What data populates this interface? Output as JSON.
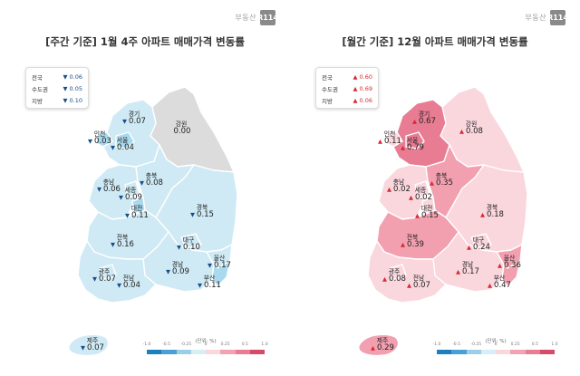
{
  "brand": {
    "text": "부동산",
    "logo": "R114"
  },
  "colors": {
    "down": "#1a4e8a",
    "up": "#d42a32",
    "weekly_fill": "#cfeaf4",
    "weekly_dark": "#a9d9ee",
    "weekly_gray": "#dcdcdc",
    "monthly_light": "#fad6dd",
    "monthly_mid": "#f2a0b0",
    "monthly_dark": "#e87c93",
    "region_border": "#ffffff"
  },
  "scale": {
    "unit": "(단위: %)",
    "ticks": [
      "-1.0",
      "-0.5",
      "-0.25",
      "0",
      "0.25",
      "0.5",
      "1.0"
    ],
    "colors": [
      "#1d7fbf",
      "#4aa0d2",
      "#9ccfe7",
      "#d6eef6",
      "#fad6dd",
      "#f2a3b3",
      "#e87c93",
      "#d44c6a"
    ]
  },
  "weekly": {
    "title": "[주간 기준] 1월 4주 아파트 매매가격 변동률",
    "legend": [
      {
        "label": "전국",
        "arrow": "▼",
        "value": "0.06"
      },
      {
        "label": "수도권",
        "arrow": "▼",
        "value": "0.05"
      },
      {
        "label": "지방",
        "arrow": "▼",
        "value": "0.10"
      }
    ],
    "regions": [
      {
        "name": "경기",
        "arrow": "▼",
        "value": "0.07"
      },
      {
        "name": "강원",
        "arrow": "",
        "value": "0.00"
      },
      {
        "name": "인천",
        "arrow": "▼",
        "value": "0.03"
      },
      {
        "name": "서울",
        "arrow": "▼",
        "value": "0.04"
      },
      {
        "name": "충북",
        "arrow": "▼",
        "value": "0.08"
      },
      {
        "name": "충남",
        "arrow": "▼",
        "value": "0.06"
      },
      {
        "name": "세종",
        "arrow": "▼",
        "value": "0.09"
      },
      {
        "name": "대전",
        "arrow": "▼",
        "value": "0.11"
      },
      {
        "name": "경북",
        "arrow": "▼",
        "value": "0.15"
      },
      {
        "name": "전북",
        "arrow": "▼",
        "value": "0.16"
      },
      {
        "name": "대구",
        "arrow": "▼",
        "value": "0.10"
      },
      {
        "name": "울산",
        "arrow": "▼",
        "value": "0.17"
      },
      {
        "name": "광주",
        "arrow": "▼",
        "value": "0.07"
      },
      {
        "name": "전남",
        "arrow": "▼",
        "value": "0.04"
      },
      {
        "name": "경남",
        "arrow": "▼",
        "value": "0.09"
      },
      {
        "name": "부산",
        "arrow": "▼",
        "value": "0.11"
      },
      {
        "name": "제주",
        "arrow": "▼",
        "value": "0.07"
      }
    ]
  },
  "monthly": {
    "title": "[월간 기준] 12월 아파트 매매가격 변동률",
    "legend": [
      {
        "label": "전국",
        "arrow": "▲",
        "value": "0.60"
      },
      {
        "label": "수도권",
        "arrow": "▲",
        "value": "0.69"
      },
      {
        "label": "지방",
        "arrow": "▲",
        "value": "0.06"
      }
    ],
    "regions": [
      {
        "name": "경기",
        "arrow": "▲",
        "value": "0.67"
      },
      {
        "name": "강원",
        "arrow": "▲",
        "value": "0.08"
      },
      {
        "name": "인천",
        "arrow": "▲",
        "value": "0.11"
      },
      {
        "name": "서울",
        "arrow": "▲",
        "value": "0.79"
      },
      {
        "name": "충북",
        "arrow": "▲",
        "value": "0.35"
      },
      {
        "name": "충남",
        "arrow": "▲",
        "value": "0.02"
      },
      {
        "name": "세종",
        "arrow": "▲",
        "value": "0.02"
      },
      {
        "name": "대전",
        "arrow": "▲",
        "value": "0.15"
      },
      {
        "name": "경북",
        "arrow": "▲",
        "value": "0.18"
      },
      {
        "name": "전북",
        "arrow": "▲",
        "value": "0.39"
      },
      {
        "name": "대구",
        "arrow": "▲",
        "value": "0.24"
      },
      {
        "name": "울산",
        "arrow": "▲",
        "value": "0.36"
      },
      {
        "name": "광주",
        "arrow": "▲",
        "value": "0.08"
      },
      {
        "name": "전남",
        "arrow": "▲",
        "value": "0.07"
      },
      {
        "name": "경남",
        "arrow": "▲",
        "value": "0.17"
      },
      {
        "name": "부산",
        "arrow": "▲",
        "value": "0.47"
      },
      {
        "name": "제주",
        "arrow": "▲",
        "value": "0.29"
      }
    ]
  }
}
